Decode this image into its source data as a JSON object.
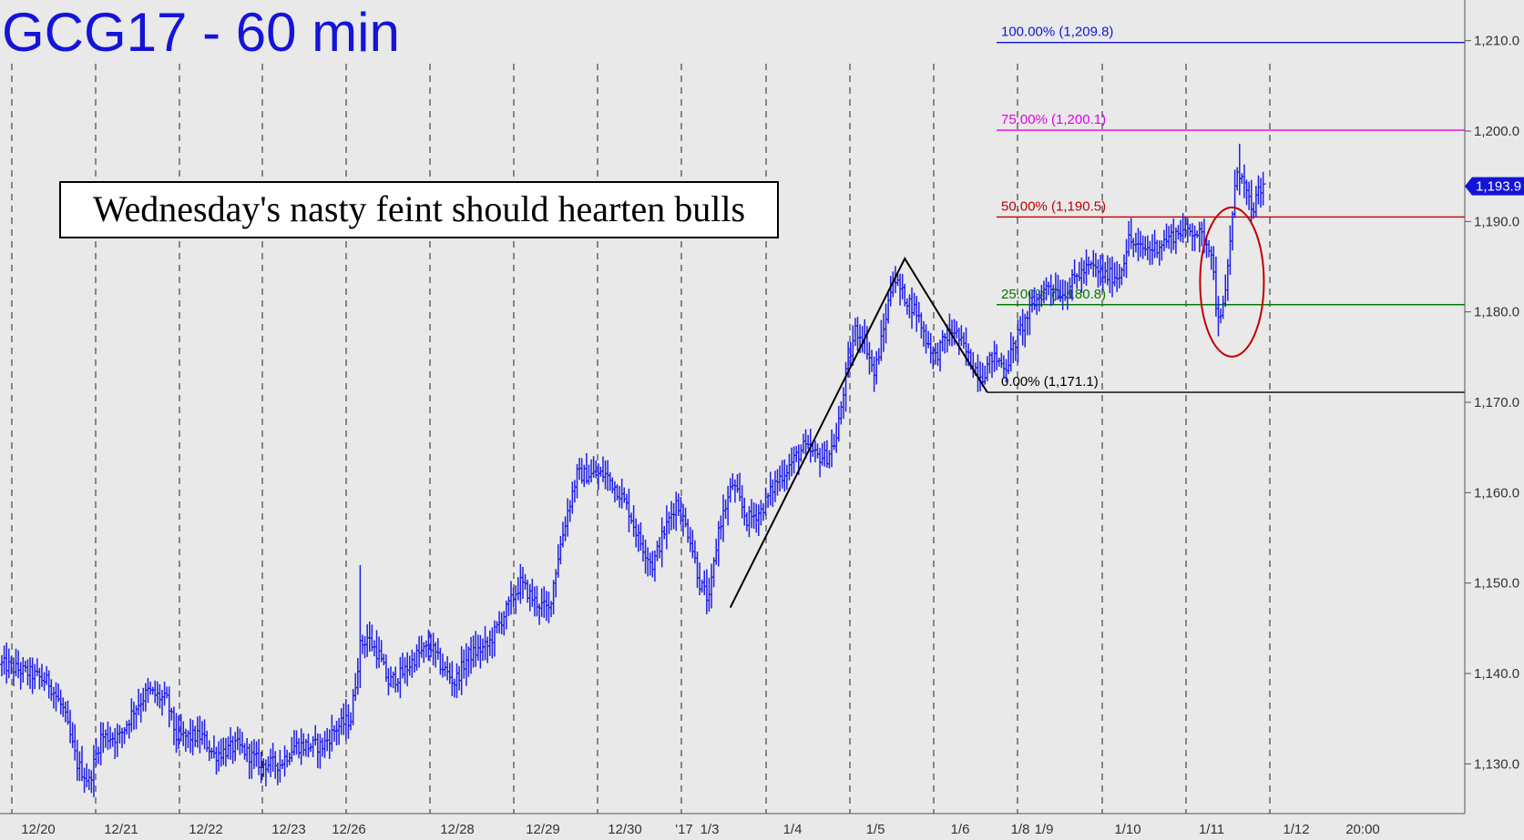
{
  "chart_data": {
    "type": "ohlc",
    "title": "GCG17 - 60 min",
    "headline": "Wednesday's nasty feint should hearten bulls",
    "ylim": [
      1124.5,
      1214.5
    ],
    "y_ticks": [
      "1,130.0",
      "1,140.0",
      "1,150.0",
      "1,160.0",
      "1,170.0",
      "1,180.0",
      "1,190.0",
      "1,200.0",
      "1,210.0"
    ],
    "y_tick_values": [
      1130,
      1140,
      1150,
      1160,
      1170,
      1180,
      1190,
      1200,
      1210
    ],
    "x_labels": [
      "12/20",
      "12/21",
      "12/22",
      "12/23",
      "12/26",
      "12/28",
      "12/29",
      "12/30",
      "'17",
      "1/3",
      "1/4",
      "1/5",
      "1/6",
      "1/8",
      "1/9",
      "1/10",
      "1/11",
      "1/12",
      "20:00"
    ],
    "session_dividers": 18,
    "last_price": "1,193.9",
    "last_price_value": 1193.9,
    "colors": {
      "background": "#e9e9e9",
      "bars": "#1f1fe6",
      "title": "#1414d9",
      "fib_100": "#1414d9",
      "fib_75": "#e600e6",
      "fib_50": "#c00000",
      "fib_25": "#007a00",
      "fib_0": "#000000",
      "ellipse": "#c00000",
      "badge": "#1414d9"
    },
    "fib_levels": [
      {
        "label": "100.00% (1,209.8)",
        "value": 1209.8,
        "color": "#1414d9"
      },
      {
        "label": "75.00% (1,200.1)",
        "value": 1200.1,
        "color": "#e600e6"
      },
      {
        "label": "50.00% (1,190.5)",
        "value": 1190.5,
        "color": "#c00000"
      },
      {
        "label": "25.00% (1,180.8)",
        "value": 1180.8,
        "color": "#007a00"
      },
      {
        "label": "0.00% (1,171.1)",
        "value": 1171.1,
        "color": "#000000"
      }
    ],
    "pattern_points": [
      1147.3,
      1185.9,
      1171.1
    ],
    "series_anchors": [
      [
        0,
        1141
      ],
      [
        12,
        1140
      ],
      [
        20,
        1139
      ],
      [
        26,
        1136
      ],
      [
        32,
        1130
      ],
      [
        37,
        1128
      ],
      [
        42,
        1133
      ],
      [
        50,
        1133
      ],
      [
        56,
        1136
      ],
      [
        62,
        1138
      ],
      [
        70,
        1137
      ],
      [
        74,
        1133
      ],
      [
        85,
        1133
      ],
      [
        90,
        1131
      ],
      [
        100,
        1132
      ],
      [
        110,
        1130
      ],
      [
        118,
        1130
      ],
      [
        124,
        1132
      ],
      [
        136,
        1132
      ],
      [
        142,
        1134
      ],
      [
        148,
        1135
      ],
      [
        152,
        1143
      ],
      [
        155,
        1144
      ],
      [
        160,
        1142
      ],
      [
        164,
        1139
      ],
      [
        170,
        1140
      ],
      [
        176,
        1142
      ],
      [
        182,
        1143
      ],
      [
        186,
        1141
      ],
      [
        192,
        1139
      ],
      [
        198,
        1142
      ],
      [
        206,
        1143
      ],
      [
        214,
        1147
      ],
      [
        220,
        1150
      ],
      [
        226,
        1148
      ],
      [
        232,
        1147
      ],
      [
        236,
        1153
      ],
      [
        240,
        1158
      ],
      [
        244,
        1162
      ],
      [
        248,
        1162
      ],
      [
        256,
        1162
      ],
      [
        262,
        1160
      ],
      [
        266,
        1158
      ],
      [
        270,
        1155
      ],
      [
        276,
        1152
      ],
      [
        280,
        1155
      ],
      [
        286,
        1159
      ],
      [
        292,
        1155
      ],
      [
        296,
        1150
      ],
      [
        300,
        1148
      ],
      [
        304,
        1156
      ],
      [
        310,
        1161
      ],
      [
        316,
        1157
      ],
      [
        322,
        1158
      ],
      [
        328,
        1161
      ],
      [
        334,
        1163
      ],
      [
        340,
        1165
      ],
      [
        346,
        1164
      ],
      [
        350,
        1164
      ],
      [
        354,
        1166
      ],
      [
        358,
        1173
      ],
      [
        362,
        1178
      ],
      [
        366,
        1177
      ],
      [
        370,
        1173
      ],
      [
        374,
        1178
      ],
      [
        378,
        1184
      ],
      [
        382,
        1182
      ],
      [
        388,
        1180
      ],
      [
        392,
        1177
      ],
      [
        396,
        1175
      ],
      [
        400,
        1177
      ],
      [
        404,
        1178
      ],
      [
        408,
        1176
      ],
      [
        412,
        1174
      ],
      [
        416,
        1173
      ],
      [
        420,
        1175
      ],
      [
        426,
        1174
      ],
      [
        432,
        1178
      ],
      [
        438,
        1181
      ],
      [
        444,
        1183
      ],
      [
        450,
        1182
      ],
      [
        456,
        1184
      ],
      [
        462,
        1185
      ],
      [
        468,
        1184
      ],
      [
        474,
        1184
      ],
      [
        478,
        1188
      ],
      [
        482,
        1187
      ],
      [
        488,
        1187
      ],
      [
        494,
        1188
      ],
      [
        500,
        1189
      ],
      [
        506,
        1189
      ],
      [
        510,
        1188
      ],
      [
        513,
        1187
      ],
      [
        515,
        1181
      ],
      [
        517,
        1179
      ],
      [
        519,
        1182
      ],
      [
        521,
        1188
      ],
      [
        524,
        1196
      ],
      [
        527,
        1194
      ],
      [
        530,
        1191
      ],
      [
        533,
        1193
      ],
      [
        535,
        1193.9
      ]
    ],
    "pattern_x": [
      309,
      383,
      418
    ],
    "ellipse_time": 521,
    "ellipse_price": 1183.3
  }
}
